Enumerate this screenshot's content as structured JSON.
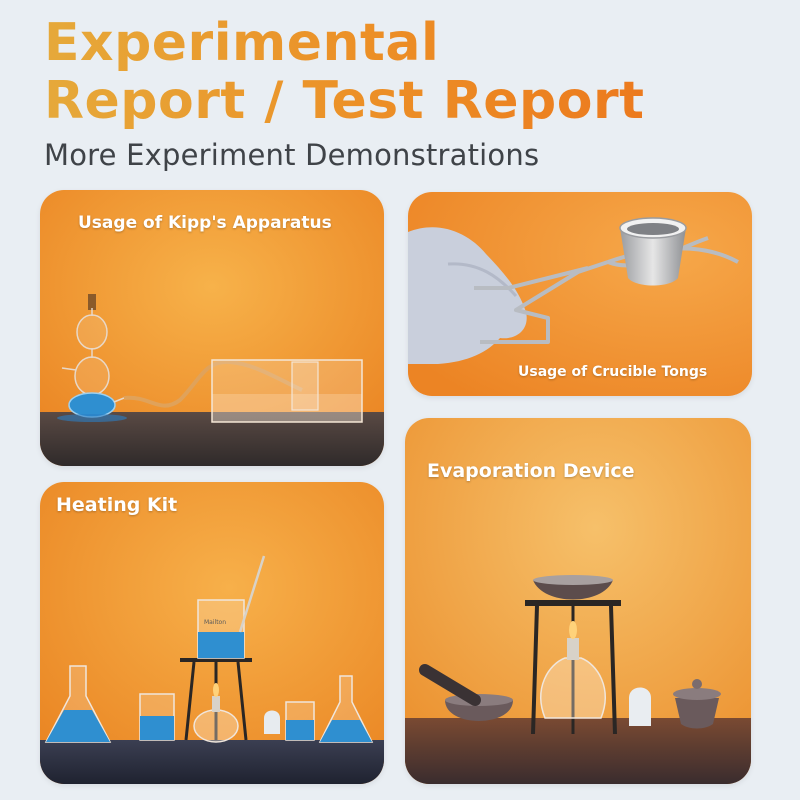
{
  "header": {
    "title_line1": "Experimental",
    "title_line2": "Report / Test Report",
    "subtitle": "More Experiment Demonstrations"
  },
  "cards": {
    "kipp": {
      "label": "Usage of Kipp's Apparatus"
    },
    "tongs": {
      "label": "Usage of Crucible Tongs"
    },
    "heating": {
      "label": "Heating Kit",
      "beaker_mark": "Mailton"
    },
    "evaporation": {
      "label": "Evaporation Device"
    }
  },
  "colors": {
    "background": "#e9eef3",
    "title_gradient_start": "#e6a93a",
    "title_gradient_end": "#ec7a1e",
    "subtitle": "#3f4348",
    "card_orange": "#f0932a",
    "liquid_blue": "#2f8fd0"
  }
}
